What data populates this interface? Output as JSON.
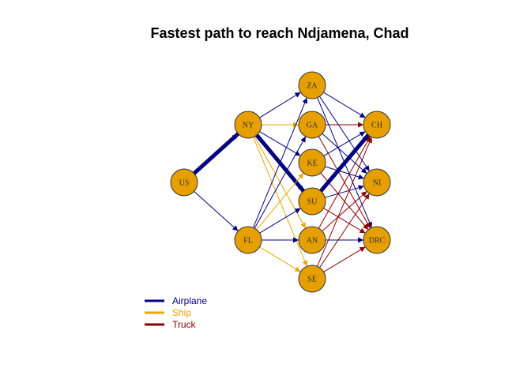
{
  "title": "Fastest path to reach Ndjamena, Chad",
  "colors": {
    "airplane": "#000080",
    "ship": "#E8A700",
    "truck": "#8B0000",
    "node_fill": "#E5A000",
    "node_stroke": "#333333"
  },
  "legend": [
    {
      "label": "Airplane",
      "mode": "airplane"
    },
    {
      "label": "Ship",
      "mode": "ship"
    },
    {
      "label": "Truck",
      "mode": "truck"
    }
  ],
  "nodes": [
    {
      "id": "US",
      "label": "US"
    },
    {
      "id": "NY",
      "label": "NY"
    },
    {
      "id": "FL",
      "label": "FL"
    },
    {
      "id": "ZA",
      "label": "ZA"
    },
    {
      "id": "GA",
      "label": "GA"
    },
    {
      "id": "KE",
      "label": "KE"
    },
    {
      "id": "SU",
      "label": "SU"
    },
    {
      "id": "AN",
      "label": "AN"
    },
    {
      "id": "SE",
      "label": "SE"
    },
    {
      "id": "CH",
      "label": "CH"
    },
    {
      "id": "NI",
      "label": "NI"
    },
    {
      "id": "DRC",
      "label": "DRC"
    }
  ],
  "edges": [
    {
      "from": "US",
      "to": "NY",
      "mode": "airplane",
      "highlight": true
    },
    {
      "from": "US",
      "to": "FL",
      "mode": "airplane"
    },
    {
      "from": "NY",
      "to": "ZA",
      "mode": "airplane"
    },
    {
      "from": "NY",
      "to": "GA",
      "mode": "ship"
    },
    {
      "from": "NY",
      "to": "KE",
      "mode": "airplane"
    },
    {
      "from": "NY",
      "to": "SU",
      "mode": "airplane",
      "highlight": true
    },
    {
      "from": "NY",
      "to": "AN",
      "mode": "ship"
    },
    {
      "from": "NY",
      "to": "SE",
      "mode": "ship"
    },
    {
      "from": "FL",
      "to": "ZA",
      "mode": "airplane"
    },
    {
      "from": "FL",
      "to": "GA",
      "mode": "airplane"
    },
    {
      "from": "FL",
      "to": "KE",
      "mode": "ship"
    },
    {
      "from": "FL",
      "to": "SU",
      "mode": "airplane"
    },
    {
      "from": "FL",
      "to": "AN",
      "mode": "airplane"
    },
    {
      "from": "FL",
      "to": "SE",
      "mode": "ship"
    },
    {
      "from": "ZA",
      "to": "CH",
      "mode": "airplane"
    },
    {
      "from": "ZA",
      "to": "NI",
      "mode": "airplane"
    },
    {
      "from": "ZA",
      "to": "DRC",
      "mode": "airplane"
    },
    {
      "from": "GA",
      "to": "CH",
      "mode": "truck"
    },
    {
      "from": "GA",
      "to": "NI",
      "mode": "airplane"
    },
    {
      "from": "GA",
      "to": "DRC",
      "mode": "truck"
    },
    {
      "from": "KE",
      "to": "CH",
      "mode": "airplane"
    },
    {
      "from": "KE",
      "to": "NI",
      "mode": "airplane"
    },
    {
      "from": "KE",
      "to": "DRC",
      "mode": "truck"
    },
    {
      "from": "SU",
      "to": "CH",
      "mode": "airplane",
      "highlight": true
    },
    {
      "from": "SU",
      "to": "NI",
      "mode": "airplane"
    },
    {
      "from": "SU",
      "to": "DRC",
      "mode": "truck"
    },
    {
      "from": "AN",
      "to": "CH",
      "mode": "truck"
    },
    {
      "from": "AN",
      "to": "NI",
      "mode": "truck"
    },
    {
      "from": "AN",
      "to": "DRC",
      "mode": "airplane"
    },
    {
      "from": "SE",
      "to": "CH",
      "mode": "truck"
    },
    {
      "from": "SE",
      "to": "NI",
      "mode": "truck"
    },
    {
      "from": "SE",
      "to": "DRC",
      "mode": "truck"
    }
  ]
}
